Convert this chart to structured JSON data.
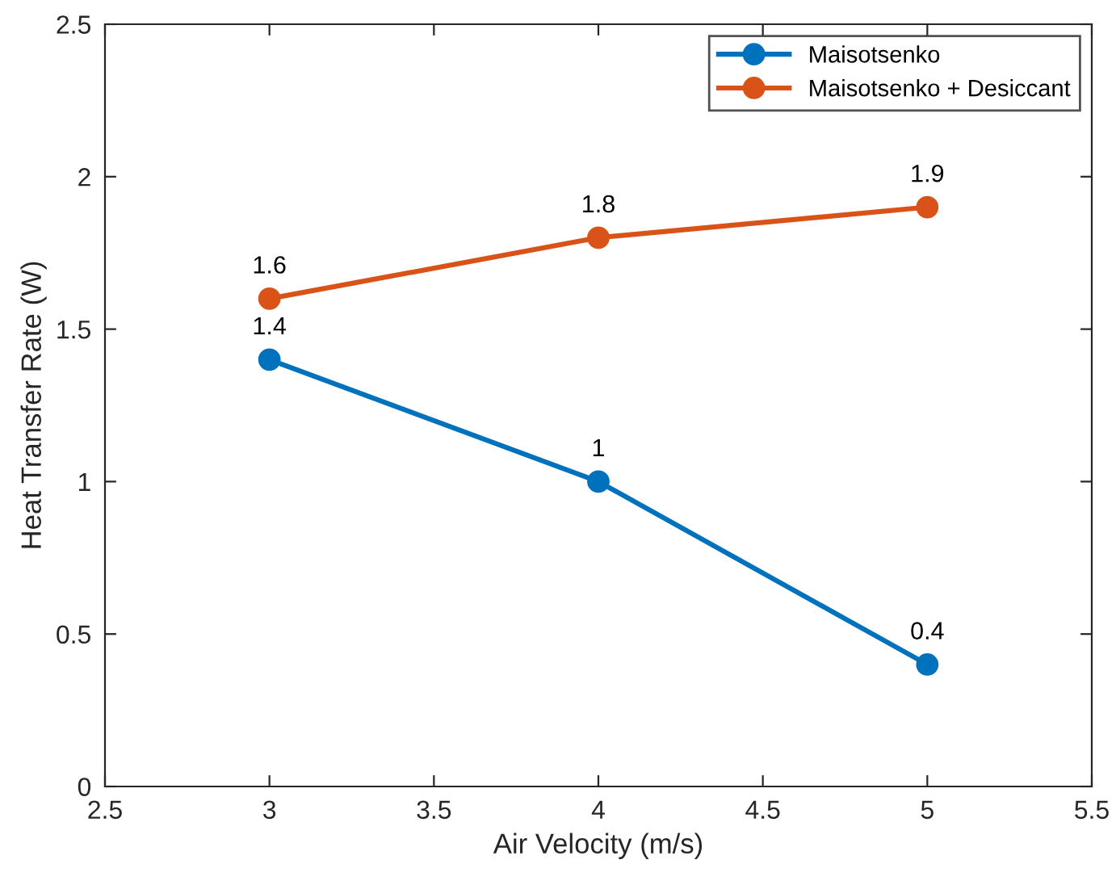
{
  "chart_data": {
    "type": "line",
    "xlabel": "Air Velocity (m/s)",
    "ylabel": "Heat Transfer Rate (W)",
    "x": [
      3,
      4,
      5
    ],
    "series": [
      {
        "name": "Maisotsenko",
        "color": "#0072bd",
        "values": [
          1.4,
          1,
          0.4
        ]
      },
      {
        "name": "Maisotsenko + Desiccant",
        "color": "#d95319",
        "values": [
          1.6,
          1.8,
          1.9
        ]
      }
    ],
    "xlim": [
      2.5,
      5.5
    ],
    "xticks": [
      2.5,
      3,
      3.5,
      4,
      4.5,
      5,
      5.5
    ],
    "ylim": [
      0,
      2.5
    ],
    "yticks": [
      0,
      0.5,
      1,
      1.5,
      2,
      2.5
    ],
    "data_labels": true,
    "legend": "top right",
    "marker": "circle",
    "line_style": "solid",
    "grid": false
  }
}
